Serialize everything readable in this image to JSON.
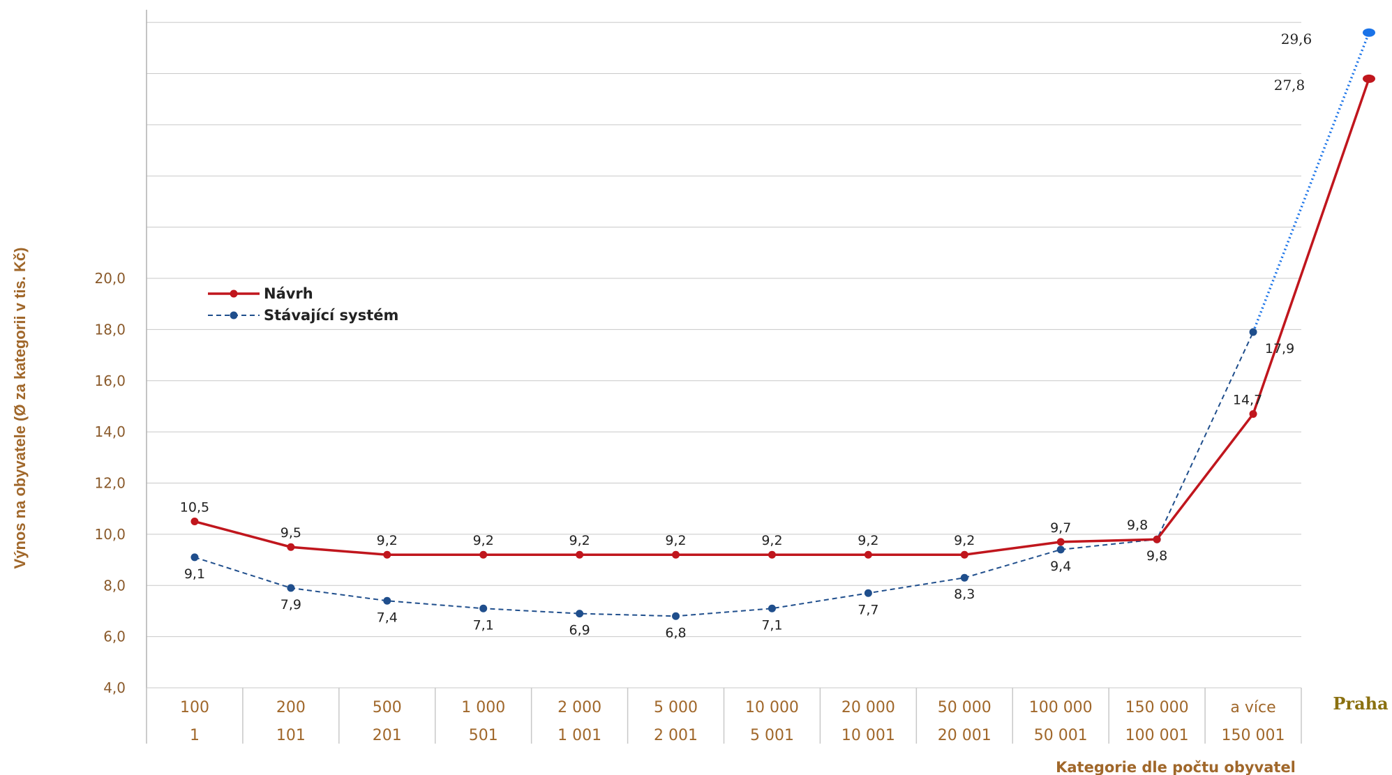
{
  "chart_data": {
    "type": "line",
    "ylabel": "Výnos na obyvatele (Ø za kategorii v tis. Kč)",
    "xlabel": "Kategorie dle počtu obyvatel",
    "ylim": [
      4,
      20
    ],
    "yticks": [
      "4,0",
      "6,0",
      "8,0",
      "10,0",
      "12,0",
      "14,0",
      "16,0",
      "18,0",
      "20,0"
    ],
    "categories": [
      {
        "top": "100",
        "bottom": "1"
      },
      {
        "top": "200",
        "bottom": "101"
      },
      {
        "top": "500",
        "bottom": "201"
      },
      {
        "top": "1 000",
        "bottom": "501"
      },
      {
        "top": "2 000",
        "bottom": "1 001"
      },
      {
        "top": "5 000",
        "bottom": "2 001"
      },
      {
        "top": "10 000",
        "bottom": "5 001"
      },
      {
        "top": "20 000",
        "bottom": "10 001"
      },
      {
        "top": "50 000",
        "bottom": "20 001"
      },
      {
        "top": "100 000",
        "bottom": "50 001"
      },
      {
        "top": "150 000",
        "bottom": "100 001"
      },
      {
        "top": "a více",
        "bottom": "150 001"
      }
    ],
    "extra_category": "Praha",
    "grid": true,
    "legend_position": "upper-left",
    "series": [
      {
        "name": "Návrh",
        "color": "#c0161d",
        "style": "solid",
        "values": [
          10.5,
          9.5,
          9.2,
          9.2,
          9.2,
          9.2,
          9.2,
          9.2,
          9.2,
          9.7,
          9.8,
          14.7
        ],
        "labels": [
          "10,5",
          "9,5",
          "9,2",
          "9,2",
          "9,2",
          "9,2",
          "9,2",
          "9,2",
          "9,2",
          "9,7",
          "9,8",
          "14,7"
        ],
        "praha_value": 27.8,
        "praha_label": "27,8"
      },
      {
        "name": "Stávající systém",
        "color": "#1f4e8c",
        "style": "dashed",
        "values": [
          9.1,
          7.9,
          7.4,
          7.1,
          6.9,
          6.8,
          7.1,
          7.7,
          8.3,
          9.4,
          9.8,
          17.9
        ],
        "labels": [
          "9,1",
          "7,9",
          "7,4",
          "7,1",
          "6,9",
          "6,8",
          "7,1",
          "7,7",
          "8,3",
          "9,4",
          "9,8",
          "17,9"
        ],
        "praha_value": 29.6,
        "praha_label": "29,6",
        "praha_color": "#1a73e8"
      }
    ]
  }
}
